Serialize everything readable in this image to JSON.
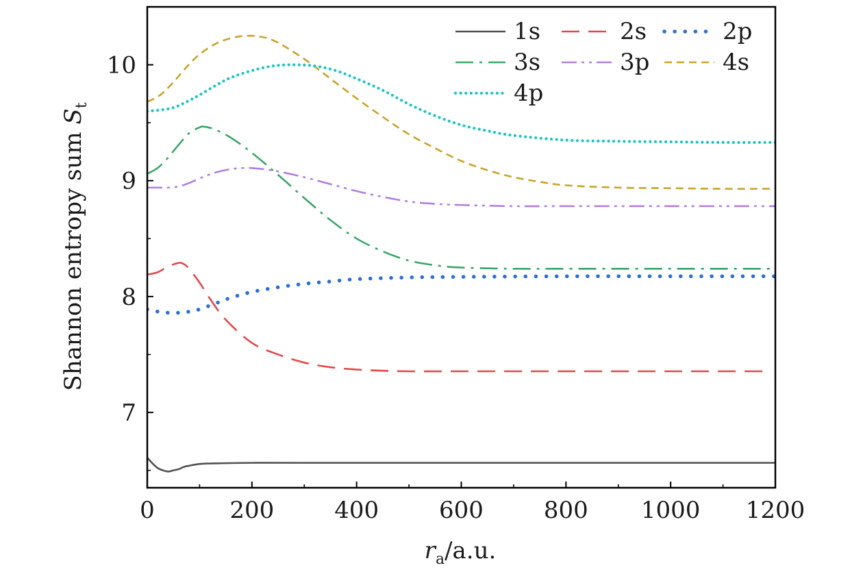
{
  "chart_data": {
    "type": "line",
    "title": "",
    "xlabel": {
      "main": "r",
      "sub": "a",
      "suffix": "/a.u."
    },
    "ylabel": {
      "main": "Shannon entropy sum ",
      "symbol": "S",
      "sub": "t"
    },
    "xlim": [
      0,
      1200
    ],
    "ylim": [
      6.35,
      10.5
    ],
    "xticks": [
      0,
      200,
      400,
      600,
      800,
      1000,
      1200
    ],
    "xtick_labels": [
      "0",
      "200",
      "400",
      "600",
      "800",
      "1000",
      "1200"
    ],
    "yticks": [
      7,
      8,
      9,
      10
    ],
    "ytick_labels": [
      "7",
      "8",
      "9",
      "10"
    ],
    "legend_position": "top-right",
    "series": [
      {
        "name": "1s",
        "color": "#505050",
        "style": "solid",
        "x": [
          0,
          10,
          20,
          30,
          40,
          50,
          60,
          70,
          80,
          100,
          130,
          200,
          300,
          500,
          800,
          1200
        ],
        "y": [
          6.61,
          6.56,
          6.52,
          6.5,
          6.49,
          6.5,
          6.51,
          6.53,
          6.54,
          6.555,
          6.56,
          6.565,
          6.565,
          6.565,
          6.565,
          6.565
        ]
      },
      {
        "name": "2s",
        "color": "#e0484a",
        "style": "dash",
        "x": [
          0,
          20,
          40,
          60,
          70,
          80,
          100,
          120,
          150,
          200,
          250,
          300,
          350,
          400,
          450,
          500,
          600,
          800,
          1000,
          1180
        ],
        "y": [
          8.19,
          8.21,
          8.26,
          8.29,
          8.28,
          8.24,
          8.12,
          7.98,
          7.8,
          7.6,
          7.5,
          7.43,
          7.39,
          7.37,
          7.36,
          7.355,
          7.355,
          7.355,
          7.355,
          7.355
        ]
      },
      {
        "name": "2p",
        "color": "#2a6fd6",
        "style": "dot-heavy",
        "x": [
          0,
          20,
          40,
          60,
          80,
          100,
          130,
          160,
          200,
          250,
          300,
          350,
          400,
          500,
          600,
          800,
          1000,
          1200
        ],
        "y": [
          7.89,
          7.87,
          7.86,
          7.86,
          7.87,
          7.89,
          7.94,
          7.99,
          8.04,
          8.08,
          8.11,
          8.13,
          8.15,
          8.165,
          8.17,
          8.175,
          8.175,
          8.175
        ]
      },
      {
        "name": "3s",
        "color": "#3aa567",
        "style": "dash-dot",
        "x": [
          0,
          20,
          40,
          60,
          80,
          100,
          110,
          130,
          160,
          200,
          250,
          300,
          350,
          400,
          450,
          500,
          550,
          600,
          700,
          800,
          1000,
          1200
        ],
        "y": [
          9.06,
          9.11,
          9.2,
          9.31,
          9.41,
          9.46,
          9.465,
          9.44,
          9.37,
          9.24,
          9.05,
          8.85,
          8.66,
          8.5,
          8.39,
          8.31,
          8.27,
          8.25,
          8.24,
          8.24,
          8.24,
          8.24
        ]
      },
      {
        "name": "3p",
        "color": "#b27ee0",
        "style": "dash-dot-dot",
        "x": [
          0,
          20,
          40,
          60,
          80,
          100,
          130,
          160,
          190,
          220,
          250,
          300,
          350,
          400,
          450,
          500,
          550,
          600,
          700,
          800,
          1000,
          1200
        ],
        "y": [
          8.94,
          8.94,
          8.94,
          8.95,
          8.98,
          9.02,
          9.07,
          9.1,
          9.11,
          9.1,
          9.08,
          9.03,
          8.97,
          8.91,
          8.86,
          8.82,
          8.8,
          8.79,
          8.78,
          8.78,
          8.78,
          8.78
        ]
      },
      {
        "name": "4s",
        "color": "#c9a227",
        "style": "short-dash",
        "x": [
          0,
          25,
          50,
          75,
          100,
          130,
          160,
          190,
          220,
          250,
          300,
          350,
          400,
          450,
          500,
          550,
          600,
          650,
          700,
          750,
          800,
          900,
          1000,
          1100,
          1200
        ],
        "y": [
          9.68,
          9.74,
          9.85,
          9.98,
          10.09,
          10.18,
          10.23,
          10.25,
          10.24,
          10.19,
          10.05,
          9.88,
          9.71,
          9.55,
          9.4,
          9.28,
          9.17,
          9.09,
          9.03,
          8.99,
          8.96,
          8.94,
          8.935,
          8.93,
          8.93
        ]
      },
      {
        "name": "4p",
        "color": "#19c4c4",
        "style": "dot-dense",
        "x": [
          0,
          25,
          50,
          75,
          100,
          130,
          160,
          200,
          240,
          280,
          320,
          360,
          400,
          450,
          500,
          550,
          600,
          650,
          700,
          800,
          900,
          1000,
          1100,
          1200
        ],
        "y": [
          9.6,
          9.61,
          9.63,
          9.68,
          9.74,
          9.82,
          9.89,
          9.95,
          9.99,
          10.0,
          9.99,
          9.95,
          9.88,
          9.78,
          9.66,
          9.56,
          9.48,
          9.43,
          9.39,
          9.35,
          9.34,
          9.335,
          9.33,
          9.33
        ]
      }
    ]
  }
}
